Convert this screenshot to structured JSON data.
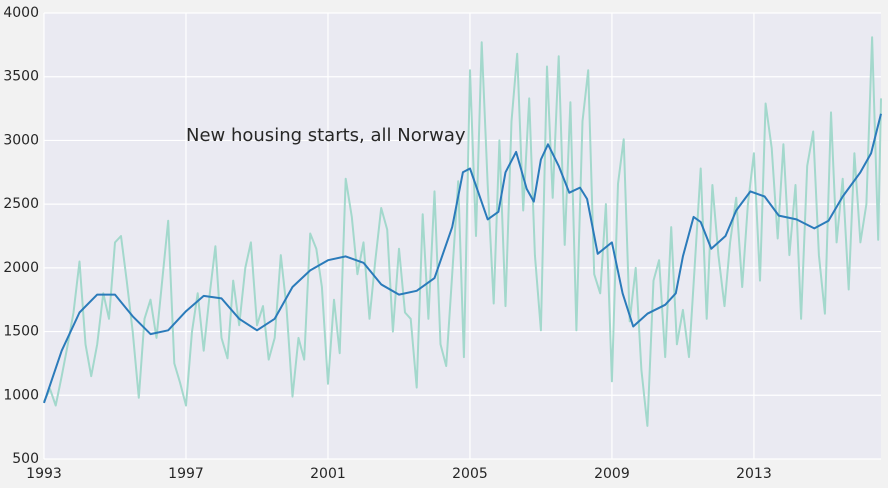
{
  "chart_data": {
    "type": "line",
    "annotation": "New housing starts, all Norway",
    "xlim": [
      1993,
      2016.58
    ],
    "xticks": [
      1993,
      1997,
      2001,
      2005,
      2009,
      2013
    ],
    "ylim": [
      500,
      4000
    ],
    "yticks": [
      500,
      1000,
      1500,
      2000,
      2500,
      3000,
      3500,
      4000
    ],
    "grid": true,
    "series": [
      {
        "color": "#a3d8cc",
        "x": [
          1993,
          1993.17,
          1993.33,
          1993.5,
          1993.67,
          1993.83,
          1994,
          1994.17,
          1994.33,
          1994.5,
          1994.67,
          1994.83,
          1995,
          1995.17,
          1995.33,
          1995.5,
          1995.67,
          1995.83,
          1996,
          1996.17,
          1996.33,
          1996.5,
          1996.67,
          1996.83,
          1997,
          1997.17,
          1997.33,
          1997.5,
          1997.67,
          1997.83,
          1998,
          1998.17,
          1998.33,
          1998.5,
          1998.67,
          1998.83,
          1999,
          1999.17,
          1999.33,
          1999.5,
          1999.67,
          1999.83,
          2000,
          2000.17,
          2000.33,
          2000.5,
          2000.67,
          2000.83,
          2001,
          2001.17,
          2001.33,
          2001.5,
          2001.67,
          2001.83,
          2002,
          2002.17,
          2002.33,
          2002.5,
          2002.67,
          2002.83,
          2003,
          2003.17,
          2003.33,
          2003.5,
          2003.67,
          2003.83,
          2004,
          2004.17,
          2004.33,
          2004.5,
          2004.67,
          2004.83,
          2005,
          2005.17,
          2005.33,
          2005.5,
          2005.67,
          2005.83,
          2006,
          2006.17,
          2006.33,
          2006.5,
          2006.67,
          2006.83,
          2007,
          2007.17,
          2007.33,
          2007.5,
          2007.67,
          2007.83,
          2008,
          2008.17,
          2008.33,
          2008.5,
          2008.67,
          2008.83,
          2009,
          2009.17,
          2009.33,
          2009.5,
          2009.67,
          2009.83,
          2010,
          2010.17,
          2010.33,
          2010.5,
          2010.67,
          2010.83,
          2011,
          2011.17,
          2011.33,
          2011.5,
          2011.67,
          2011.83,
          2012,
          2012.17,
          2012.33,
          2012.5,
          2012.67,
          2012.83,
          2013,
          2013.17,
          2013.33,
          2013.5,
          2013.67,
          2013.83,
          2014,
          2014.17,
          2014.33,
          2014.5,
          2014.67,
          2014.83,
          2015,
          2015.17,
          2015.33,
          2015.5,
          2015.67,
          2015.83,
          2016,
          2016.17,
          2016.33,
          2016.5,
          2016.58
        ],
        "values": [
          950,
          1050,
          920,
          1150,
          1400,
          1650,
          2050,
          1400,
          1150,
          1400,
          1800,
          1600,
          2200,
          2250,
          1900,
          1500,
          980,
          1600,
          1750,
          1450,
          1900,
          2370,
          1250,
          1100,
          920,
          1500,
          1800,
          1350,
          1800,
          2170,
          1450,
          1290,
          1900,
          1550,
          2000,
          2200,
          1550,
          1700,
          1280,
          1450,
          2100,
          1700,
          990,
          1450,
          1280,
          2270,
          2150,
          1850,
          1090,
          1750,
          1330,
          2700,
          2400,
          1950,
          2200,
          1600,
          2050,
          2470,
          2300,
          1500,
          2150,
          1650,
          1600,
          1060,
          2420,
          1600,
          2600,
          1400,
          1230,
          1950,
          2680,
          1300,
          3550,
          2250,
          3770,
          2650,
          1720,
          3000,
          1700,
          3150,
          3680,
          2450,
          3330,
          2100,
          1510,
          3580,
          2550,
          3660,
          2180,
          3300,
          1510,
          3150,
          3550,
          1950,
          1800,
          2500,
          1110,
          2660,
          3010,
          1580,
          2000,
          1200,
          760,
          1900,
          2060,
          1300,
          2320,
          1400,
          1670,
          1300,
          2000,
          2780,
          1600,
          2650,
          2100,
          1700,
          2200,
          2550,
          1850,
          2500,
          2900,
          1900,
          3290,
          2940,
          2230,
          2970,
          2100,
          2650,
          1600,
          2800,
          3070,
          2100,
          1640,
          3220,
          2200,
          2700,
          1830,
          2900,
          2200,
          2500,
          3810,
          2220,
          3330
        ]
      },
      {
        "color": "#2b7bba",
        "x": [
          1993,
          1993.5,
          1994,
          1994.5,
          1995,
          1995.5,
          1996,
          1996.5,
          1997,
          1997.5,
          1998,
          1998.5,
          1999,
          1999.5,
          2000,
          2000.5,
          2001,
          2001.5,
          2002,
          2002.5,
          2003,
          2003.5,
          2004,
          2004.5,
          2004.8,
          2005,
          2005.5,
          2005.8,
          2006,
          2006.3,
          2006.6,
          2006.8,
          2007,
          2007.2,
          2007.5,
          2007.8,
          2008.1,
          2008.3,
          2008.6,
          2009,
          2009.3,
          2009.6,
          2010,
          2010.5,
          2010.8,
          2011,
          2011.3,
          2011.5,
          2011.8,
          2012.2,
          2012.5,
          2012.9,
          2013.3,
          2013.7,
          2014.2,
          2014.7,
          2015.1,
          2015.5,
          2016,
          2016.3,
          2016.58
        ],
        "values": [
          940,
          1350,
          1650,
          1790,
          1790,
          1620,
          1480,
          1510,
          1660,
          1780,
          1760,
          1600,
          1510,
          1600,
          1850,
          1980,
          2060,
          2090,
          2040,
          1870,
          1790,
          1820,
          1920,
          2320,
          2750,
          2780,
          2380,
          2440,
          2750,
          2910,
          2620,
          2520,
          2850,
          2970,
          2800,
          2590,
          2630,
          2540,
          2110,
          2200,
          1800,
          1540,
          1640,
          1710,
          1800,
          2090,
          2400,
          2360,
          2150,
          2250,
          2450,
          2600,
          2560,
          2410,
          2380,
          2310,
          2370,
          2560,
          2750,
          2900,
          3210
        ]
      }
    ]
  }
}
